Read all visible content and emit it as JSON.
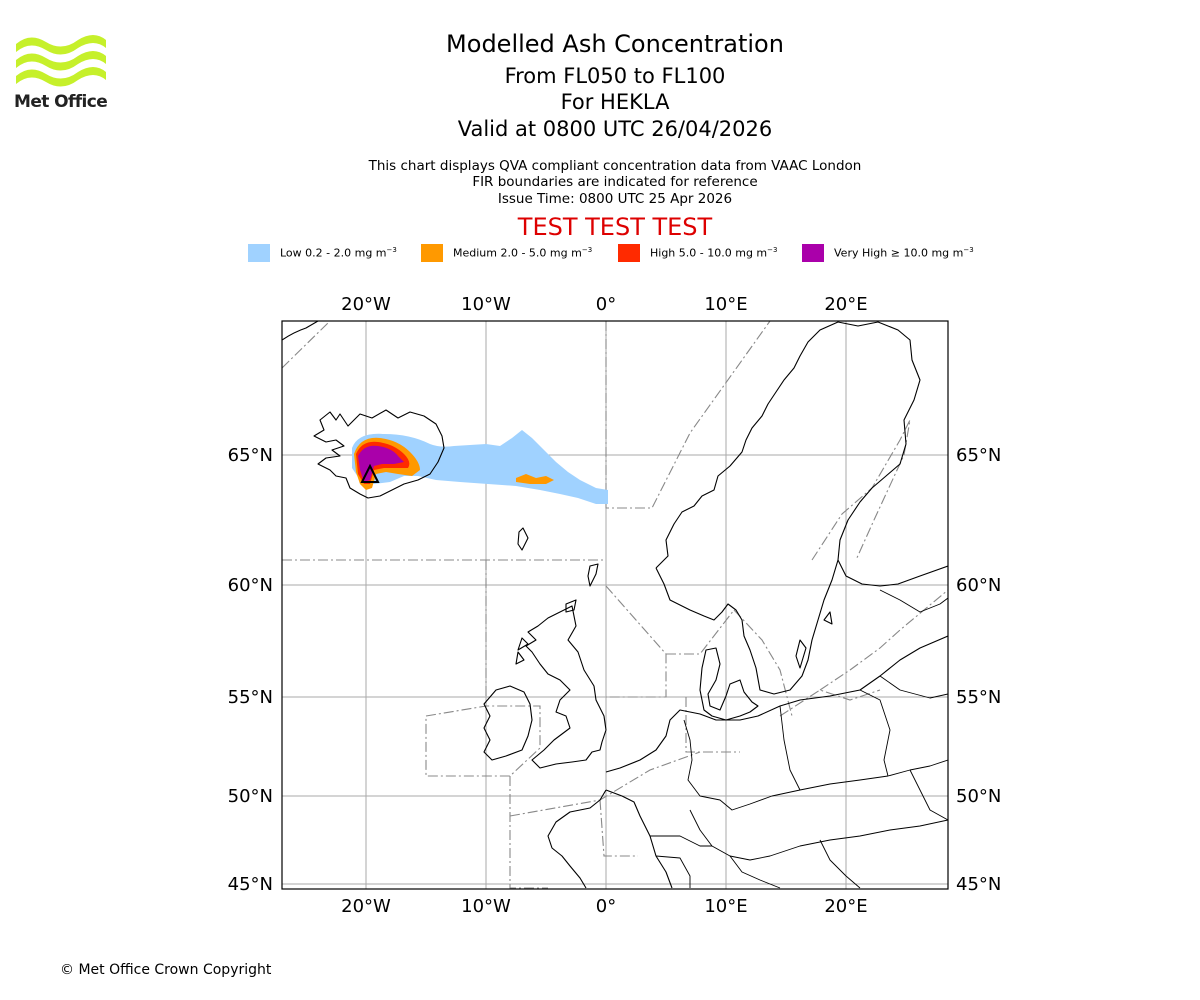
{
  "logo": {
    "text": "Met Office",
    "color": "#c6f02b"
  },
  "title": {
    "main": "Modelled Ash Concentration",
    "levels": "From FL050 to FL100",
    "volcano": "For HEKLA",
    "valid": "Valid at 0800 UTC 26/04/2026"
  },
  "subtitle": {
    "line1": "This chart displays QVA compliant concentration data from VAAC London",
    "line2": "FIR boundaries are indicated for reference",
    "issue": "Issue Time: 0800 UTC 25 Apr 2026"
  },
  "banner": {
    "text": "TEST TEST TEST",
    "color": "#dd0000"
  },
  "legend": [
    {
      "label": "Low 0.2 - 2.0 mg m",
      "color": "#a0d2ff"
    },
    {
      "label": "Medium 2.0 - 5.0 mg m",
      "color": "#ff9900"
    },
    {
      "label": "High 5.0 - 10.0 mg m",
      "color": "#ff2a00"
    },
    {
      "label": "Very High ≥ 10.0 mg m",
      "color": "#aa00aa"
    }
  ],
  "legend_unit_exponent": "−3",
  "map": {
    "lon_ticks": [
      "20°W",
      "10°W",
      "0°",
      "10°E",
      "20°E"
    ],
    "lat_ticks": [
      "65°N",
      "60°N",
      "55°N",
      "50°N",
      "45°N"
    ],
    "colors": {
      "coast": "#000000",
      "grid": "#aaaaaa",
      "fir": "#888888"
    }
  },
  "footer": {
    "copyright": "© Met Office Crown Copyright"
  }
}
